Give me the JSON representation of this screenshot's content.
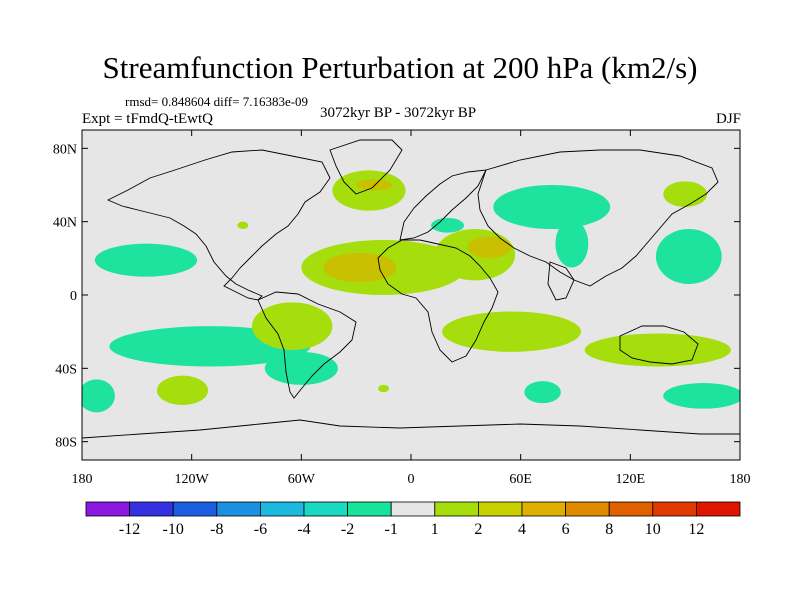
{
  "title": "Streamfunction Perturbation at 200 hPa (km2/s)",
  "stats": "rmsd= 0.848604 diff= 7.16383e-09",
  "experiment": "Expt = tFmdQ-tEwtQ",
  "period": "3072kyr BP - 3072kyr BP",
  "season": "DJF",
  "map": {
    "lon_range": [
      -180,
      180
    ],
    "lat_range": [
      -90,
      90
    ],
    "lat_ticks": [
      {
        "value": 80,
        "label": "80N"
      },
      {
        "value": 40,
        "label": "40N"
      },
      {
        "value": 0,
        "label": "0"
      },
      {
        "value": -40,
        "label": "40S"
      },
      {
        "value": -80,
        "label": "80S"
      }
    ],
    "lon_ticks": [
      {
        "value": -180,
        "label": "180"
      },
      {
        "value": -120,
        "label": "120W"
      },
      {
        "value": -60,
        "label": "60W"
      },
      {
        "value": 0,
        "label": "0"
      },
      {
        "value": 60,
        "label": "60E"
      },
      {
        "value": 120,
        "label": "120E"
      },
      {
        "value": 180,
        "label": "180"
      }
    ],
    "background_color": "#e6e6e6",
    "anomaly_regions": [
      {
        "kind": "negative",
        "level": "-2 to -1",
        "center": [
          -145,
          19
        ],
        "extent": [
          28,
          9
        ]
      },
      {
        "kind": "negative",
        "level": "-2 to -1",
        "center": [
          -110,
          -28
        ],
        "extent": [
          55,
          11
        ]
      },
      {
        "kind": "negative",
        "level": "-2 to -1",
        "center": [
          -60,
          -40
        ],
        "extent": [
          20,
          9
        ]
      },
      {
        "kind": "negative",
        "level": "-2 to -1",
        "center": [
          -172,
          -55
        ],
        "extent": [
          10,
          9
        ]
      },
      {
        "kind": "negative",
        "level": "-2 to -1",
        "center": [
          77,
          48
        ],
        "extent": [
          32,
          12
        ]
      },
      {
        "kind": "negative",
        "level": "-2 to -1",
        "center": [
          88,
          28
        ],
        "extent": [
          9,
          13
        ]
      },
      {
        "kind": "negative",
        "level": "-2 to -1",
        "center": [
          20,
          38
        ],
        "extent": [
          9,
          4
        ]
      },
      {
        "kind": "negative",
        "level": "-2 to -1",
        "center": [
          152,
          21
        ],
        "extent": [
          18,
          15
        ]
      },
      {
        "kind": "negative",
        "level": "-2 to -1",
        "center": [
          160,
          -55
        ],
        "extent": [
          22,
          7
        ]
      },
      {
        "kind": "negative",
        "level": "-2 to -1",
        "center": [
          72,
          -53
        ],
        "extent": [
          10,
          6
        ]
      },
      {
        "kind": "positive",
        "level": "1 to 2",
        "center": [
          -23,
          57
        ],
        "extent": [
          20,
          11
        ]
      },
      {
        "kind": "positive",
        "level": "1 to 2",
        "center": [
          -15,
          15
        ],
        "extent": [
          45,
          15
        ]
      },
      {
        "kind": "positive",
        "level": "1 to 2",
        "center": [
          35,
          22
        ],
        "extent": [
          22,
          14
        ]
      },
      {
        "kind": "positive",
        "level": "1 to 2",
        "center": [
          -65,
          -17
        ],
        "extent": [
          22,
          13
        ]
      },
      {
        "kind": "positive",
        "level": "1 to 2",
        "center": [
          55,
          -20
        ],
        "extent": [
          38,
          11
        ]
      },
      {
        "kind": "positive",
        "level": "1 to 2",
        "center": [
          135,
          -30
        ],
        "extent": [
          40,
          9
        ]
      },
      {
        "kind": "positive",
        "level": "1 to 2",
        "center": [
          150,
          55
        ],
        "extent": [
          12,
          7
        ]
      },
      {
        "kind": "positive",
        "level": "1 to 2",
        "center": [
          -125,
          -52
        ],
        "extent": [
          14,
          8
        ]
      },
      {
        "kind": "positive",
        "level": "1 to 2",
        "center": [
          -92,
          38
        ],
        "extent": [
          3,
          2
        ]
      },
      {
        "kind": "positive",
        "level": "1 to 2",
        "center": [
          -15,
          -51
        ],
        "extent": [
          3,
          2
        ]
      },
      {
        "kind": "positive",
        "level": "2 to 4",
        "center": [
          -28,
          15
        ],
        "extent": [
          20,
          8
        ]
      },
      {
        "kind": "positive",
        "level": "2 to 4",
        "center": [
          43,
          26
        ],
        "extent": [
          12,
          6
        ]
      },
      {
        "kind": "positive",
        "level": "2 to 4",
        "center": [
          -20,
          60
        ],
        "extent": [
          10,
          3
        ]
      }
    ]
  },
  "colorbar": {
    "colors": [
      "#8a1ae0",
      "#3530e0",
      "#1b5fe0",
      "#1d8fe0",
      "#1cb8e0",
      "#1ad8c2",
      "#18e39a",
      "#e6e6e6",
      "#a5de0c",
      "#c8d000",
      "#e0b000",
      "#e08a00",
      "#e06000",
      "#e03a00",
      "#e01500"
    ],
    "labels": [
      "-12",
      "-10",
      "-8",
      "-6",
      "-4",
      "-2",
      "-1",
      "1",
      "2",
      "4",
      "6",
      "8",
      "10",
      "12"
    ],
    "negative_fill": "#1ee39e",
    "positive_fill": "#a5de0c",
    "strong_positive_fill": "#c8c000"
  }
}
